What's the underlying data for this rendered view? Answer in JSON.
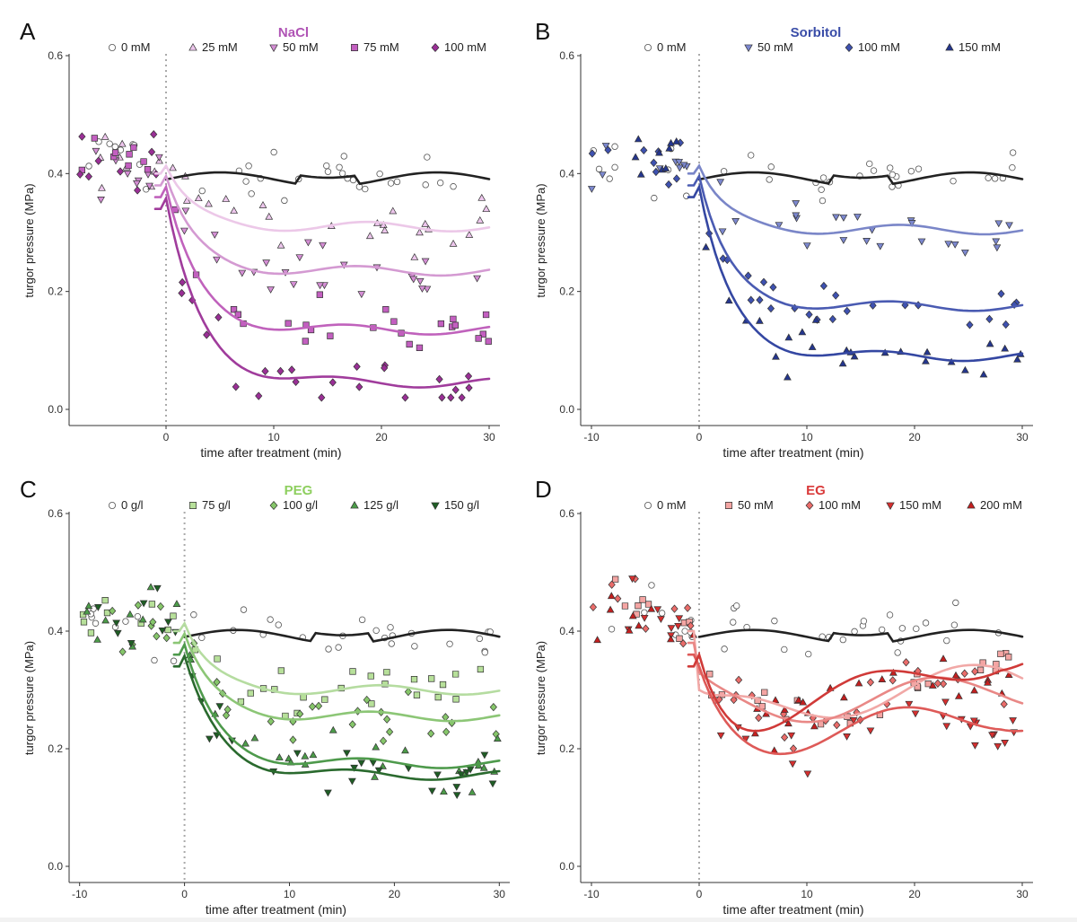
{
  "chart_data": [
    {
      "panel": "A",
      "type": "scatter",
      "title": "NaCl",
      "title_color": "#b054b5",
      "xlabel": "time after treatment (min)",
      "ylabel": "turgor pressure (MPa)",
      "xlim": [
        -9,
        31
      ],
      "ylim": [
        0,
        0.6
      ],
      "xticks": [
        0,
        10,
        20,
        30
      ],
      "yticks": [
        0.0,
        0.2,
        0.4,
        0.6
      ],
      "ytick_labels": [
        "0.0",
        "0.2",
        "0.4",
        "0.6"
      ],
      "xtick_labels": [
        "0",
        "10",
        "20",
        "30"
      ],
      "treatment_line_x": 0,
      "series": [
        {
          "name": "0 mM",
          "marker": "circle",
          "color": "#ffffff",
          "line_color": "#222222",
          "level": 0.385
        },
        {
          "name": "25 mM",
          "marker": "triangle-up",
          "color": "#edc6ec",
          "line_color": "#ecc8e8",
          "level": 0.31
        },
        {
          "name": "50 mM",
          "marker": "triangle-down",
          "color": "#d48ed4",
          "line_color": "#d49ad2",
          "level": 0.235
        },
        {
          "name": "75 mM",
          "marker": "square",
          "color": "#c35fc0",
          "line_color": "#c062bc",
          "level": 0.135
        },
        {
          "name": "100 mM",
          "marker": "diamond",
          "color": "#9a2f96",
          "line_color": "#a03c9c",
          "level": 0.045
        }
      ]
    },
    {
      "panel": "B",
      "type": "scatter",
      "title": "Sorbitol",
      "title_color": "#3a4da8",
      "xlabel": "time after treatment (min)",
      "ylabel": "turgor pressure (MPa)",
      "xlim": [
        -11,
        31
      ],
      "ylim": [
        0,
        0.6
      ],
      "xticks": [
        -10,
        0,
        10,
        20,
        30
      ],
      "xtick_labels": [
        "-10",
        "0",
        "10",
        "20",
        "30"
      ],
      "yticks": [
        0.0,
        0.2,
        0.4,
        0.6
      ],
      "ytick_labels": [
        "0.0",
        "0.2",
        "0.4",
        "0.6"
      ],
      "treatment_line_x": 0,
      "series": [
        {
          "name": "0 mM",
          "marker": "circle",
          "color": "#ffffff",
          "line_color": "#222222",
          "level": 0.385
        },
        {
          "name": "50 mM",
          "marker": "triangle-down",
          "color": "#7c88cf",
          "line_color": "#7a86c8",
          "level": 0.305
        },
        {
          "name": "100 mM",
          "marker": "diamond",
          "color": "#3e51b0",
          "line_color": "#4a5bb2",
          "level": 0.175
        },
        {
          "name": "150 mM",
          "marker": "triangle-up",
          "color": "#24368f",
          "line_color": "#3447a2",
          "level": 0.09
        }
      ]
    },
    {
      "panel": "C",
      "type": "scatter",
      "title": "PEG",
      "title_color": "#8ecf5f",
      "xlabel": "time after treatment (min)",
      "ylabel": "turgor pressure (MPa)",
      "xlim": [
        -11,
        31
      ],
      "ylim": [
        0,
        0.6
      ],
      "xticks": [
        -10,
        0,
        10,
        20,
        30
      ],
      "xtick_labels": [
        "-10",
        "0",
        "10",
        "20",
        "30"
      ],
      "yticks": [
        0.0,
        0.2,
        0.4,
        0.6
      ],
      "ytick_labels": [
        "0.0",
        "0.2",
        "0.4",
        "0.6"
      ],
      "treatment_line_x": 0,
      "series": [
        {
          "name": "0 g/l",
          "marker": "circle",
          "color": "#ffffff",
          "line_color": "#222222",
          "level": 0.385
        },
        {
          "name": "75 g/l",
          "marker": "square",
          "color": "#b7e09a",
          "line_color": "#b5dca0",
          "level": 0.3
        },
        {
          "name": "100 g/l",
          "marker": "diamond",
          "color": "#86c66a",
          "line_color": "#8cc676",
          "level": 0.255
        },
        {
          "name": "125 g/l",
          "marker": "triangle-up",
          "color": "#4c9c49",
          "line_color": "#4e9a4c",
          "level": 0.175
        },
        {
          "name": "150 g/l",
          "marker": "triangle-down",
          "color": "#1f5e25",
          "line_color": "#2a6a2e",
          "level": 0.155
        }
      ]
    },
    {
      "panel": "D",
      "type": "scatter",
      "title": "EG",
      "title_color": "#d93a3a",
      "xlabel": "time after treatment (min)",
      "ylabel": "turgor pressure (MPa)",
      "xlim": [
        -11,
        31
      ],
      "ylim": [
        0,
        0.6
      ],
      "xticks": [
        -10,
        0,
        10,
        20,
        30
      ],
      "xtick_labels": [
        "-10",
        "0",
        "10",
        "20",
        "30"
      ],
      "yticks": [
        0.0,
        0.2,
        0.4,
        0.6
      ],
      "ytick_labels": [
        "0.0",
        "0.2",
        "0.4",
        "0.6"
      ],
      "treatment_line_x": 0,
      "series": [
        {
          "name": "0 mM",
          "marker": "circle",
          "color": "#ffffff",
          "line_color": "#222222",
          "level": 0.385
        },
        {
          "name": "50 mM",
          "marker": "square",
          "color": "#f4a5a3",
          "line_color": "#f1a8a6",
          "level": 0.3
        },
        {
          "name": "100 mM",
          "marker": "diamond",
          "color": "#ea6c6a",
          "line_color": "#e98886",
          "level": 0.3
        },
        {
          "name": "150 mM",
          "marker": "triangle-down",
          "color": "#d62f2f",
          "line_color": "#de5a58",
          "level": 0.29
        },
        {
          "name": "200 mM",
          "marker": "triangle-up",
          "color": "#c41f1f",
          "line_color": "#d03a38",
          "level": 0.3
        }
      ]
    }
  ]
}
